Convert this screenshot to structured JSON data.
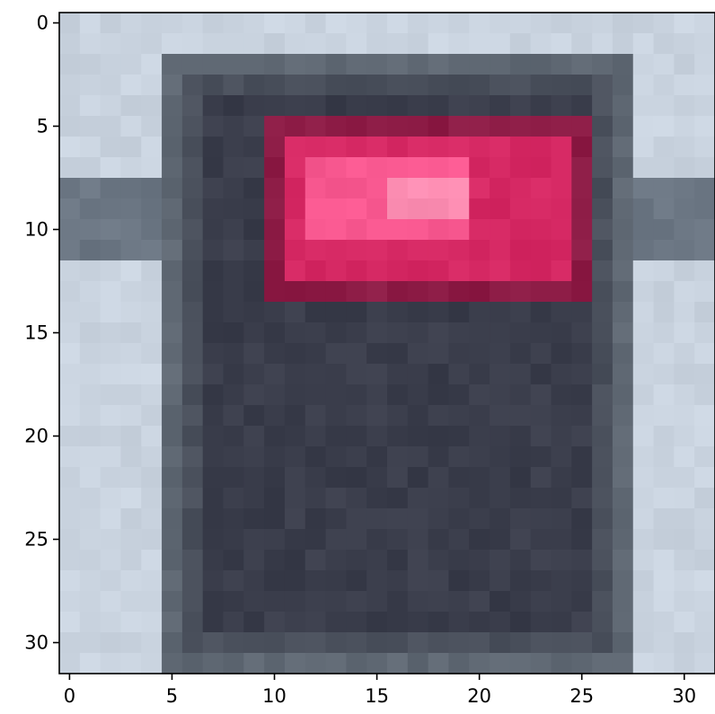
{
  "chart_data": {
    "type": "heatmap",
    "title": "",
    "xlabel": "",
    "ylabel": "",
    "xlim": [
      -0.5,
      31.5
    ],
    "ylim": [
      31.5,
      -0.5
    ],
    "x_ticks": [
      "0",
      "5",
      "10",
      "15",
      "20",
      "25",
      "30"
    ],
    "y_ticks": [
      "0",
      "5",
      "10",
      "15",
      "20",
      "25",
      "30"
    ],
    "grid": false,
    "rows": 32,
    "cols": 32,
    "content": {
      "background_color": "#c9d3df",
      "horizontal_bar_rows": [
        8,
        11
      ],
      "horizontal_bar_color": "#6b7683",
      "body_cols": [
        5,
        27
      ],
      "body_rows": [
        2,
        31
      ],
      "body_border_color": "#5f6873",
      "body_fill_color": "#3a3d4b",
      "light_cols": [
        10,
        25
      ],
      "light_rows": [
        5,
        13
      ],
      "light_outer_color": "#8c1b45",
      "light_color": "#d52863",
      "light_core_cols": [
        12,
        19
      ],
      "light_core_rows": [
        7,
        10
      ],
      "light_core_color": "#f7578f",
      "light_highlight_cols": [
        16,
        19
      ],
      "light_highlight_rows": [
        8,
        9
      ],
      "light_highlight_color": "#fb8cb1"
    }
  }
}
